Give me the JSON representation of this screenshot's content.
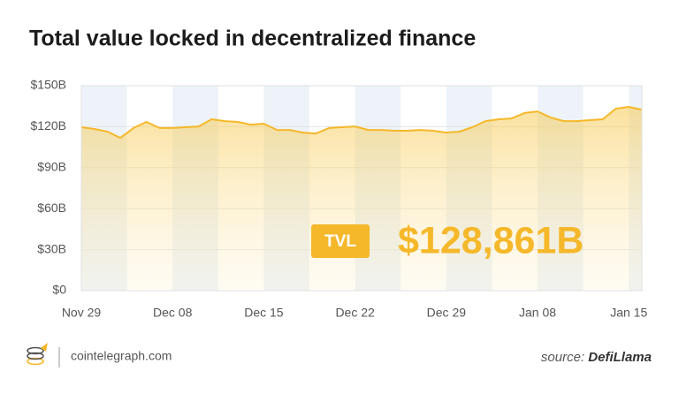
{
  "chart_data": {
    "type": "area",
    "title": "Total value locked in decentralized finance",
    "categories": [
      "Nov 29",
      null,
      null,
      null,
      null,
      null,
      null,
      "Dec 08",
      null,
      null,
      null,
      null,
      null,
      null,
      "Dec 15",
      null,
      null,
      null,
      null,
      null,
      null,
      "Dec 22",
      null,
      null,
      null,
      null,
      null,
      null,
      "Dec 29",
      null,
      null,
      null,
      null,
      null,
      null,
      "Jan 08",
      null,
      null,
      null,
      null,
      null,
      null,
      "Jan 15",
      null
    ],
    "values": [
      119.6,
      118.3,
      116.4,
      111.8,
      119,
      123.5,
      119,
      119,
      119.6,
      120.2,
      125.4,
      124.1,
      123.5,
      121.5,
      122.2,
      117.6,
      117.6,
      115.7,
      115,
      119,
      119.6,
      120.2,
      117.6,
      117.6,
      117,
      117,
      117.6,
      117,
      115.7,
      116.4,
      119.6,
      124.1,
      125.4,
      126,
      130,
      131.2,
      126.7,
      124.1,
      124.1,
      124.8,
      125.4,
      133.2,
      134.5,
      132.5
    ],
    "color": "#f5b82a",
    "ylim": [
      0,
      150
    ],
    "yticks": [
      {
        "value": 0,
        "label": "$0"
      },
      {
        "value": 30,
        "label": "$30B"
      },
      {
        "value": 60,
        "label": "$60B"
      },
      {
        "value": 90,
        "label": "$90B"
      },
      {
        "value": 120,
        "label": "$120B"
      },
      {
        "value": 150,
        "label": "$150B"
      }
    ],
    "grid": true,
    "badge": "TVL",
    "highlight": "$128,861B",
    "site": "cointelegraph.com",
    "source_label": "source:",
    "source_name": "DefiLlama"
  }
}
